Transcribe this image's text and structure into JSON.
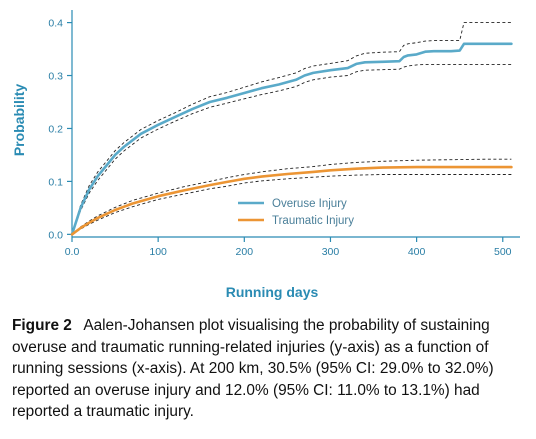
{
  "chart_data": {
    "type": "line",
    "title": "",
    "xlabel": "Running days",
    "ylabel": "Probability",
    "xlim": [
      0,
      520
    ],
    "ylim": [
      -0.005,
      0.42
    ],
    "x_ticks": [
      0,
      100,
      200,
      300,
      400,
      500
    ],
    "x_tick_labels": [
      "0.0",
      "100",
      "200",
      "300",
      "400",
      "500"
    ],
    "y_ticks": [
      0.0,
      0.1,
      0.2,
      0.3,
      0.4
    ],
    "y_tick_labels": [
      "0.0",
      "0.1",
      "0.2",
      "0.3",
      "0.4"
    ],
    "grid": false,
    "legend_position": "center-right",
    "series": [
      {
        "name": "Overuse Injury",
        "color": "#5aaac9",
        "x": [
          0,
          10,
          20,
          30,
          40,
          50,
          60,
          80,
          100,
          120,
          140,
          160,
          180,
          200,
          220,
          240,
          260,
          270,
          280,
          300,
          320,
          330,
          340,
          360,
          380,
          385,
          390,
          400,
          410,
          420,
          440,
          450,
          455,
          470,
          490,
          510
        ],
        "y": [
          0.0,
          0.05,
          0.085,
          0.11,
          0.13,
          0.15,
          0.165,
          0.19,
          0.207,
          0.222,
          0.237,
          0.25,
          0.258,
          0.267,
          0.276,
          0.283,
          0.292,
          0.3,
          0.305,
          0.31,
          0.314,
          0.322,
          0.325,
          0.326,
          0.327,
          0.335,
          0.338,
          0.34,
          0.345,
          0.346,
          0.346,
          0.347,
          0.36,
          0.36,
          0.36,
          0.36
        ],
        "ci_lower": [
          0.0,
          0.045,
          0.078,
          0.102,
          0.122,
          0.142,
          0.157,
          0.182,
          0.199,
          0.214,
          0.228,
          0.24,
          0.248,
          0.256,
          0.264,
          0.271,
          0.279,
          0.287,
          0.292,
          0.297,
          0.3,
          0.307,
          0.31,
          0.311,
          0.312,
          0.316,
          0.318,
          0.32,
          0.321,
          0.321,
          0.321,
          0.321,
          0.321,
          0.321,
          0.321,
          0.321
        ],
        "ci_upper": [
          0.0,
          0.055,
          0.092,
          0.118,
          0.138,
          0.158,
          0.173,
          0.198,
          0.215,
          0.23,
          0.246,
          0.26,
          0.268,
          0.278,
          0.288,
          0.296,
          0.305,
          0.313,
          0.318,
          0.323,
          0.328,
          0.337,
          0.342,
          0.344,
          0.345,
          0.357,
          0.36,
          0.362,
          0.365,
          0.366,
          0.366,
          0.366,
          0.4,
          0.4,
          0.4,
          0.4
        ]
      },
      {
        "name": "Traumatic Injury",
        "color": "#ec9534",
        "x": [
          0,
          10,
          20,
          30,
          50,
          70,
          100,
          130,
          160,
          180,
          190,
          200,
          220,
          250,
          280,
          300,
          330,
          360,
          400,
          440,
          480,
          510
        ],
        "y": [
          0.0,
          0.012,
          0.022,
          0.031,
          0.046,
          0.058,
          0.072,
          0.083,
          0.093,
          0.099,
          0.102,
          0.105,
          0.109,
          0.114,
          0.118,
          0.121,
          0.124,
          0.126,
          0.127,
          0.127,
          0.127,
          0.127
        ],
        "ci_lower": [
          0.0,
          0.01,
          0.019,
          0.027,
          0.041,
          0.052,
          0.066,
          0.076,
          0.086,
          0.091,
          0.094,
          0.097,
          0.101,
          0.105,
          0.108,
          0.11,
          0.112,
          0.113,
          0.113,
          0.113,
          0.113,
          0.113
        ],
        "ci_upper": [
          0.0,
          0.014,
          0.025,
          0.035,
          0.051,
          0.064,
          0.078,
          0.09,
          0.1,
          0.107,
          0.11,
          0.113,
          0.118,
          0.124,
          0.128,
          0.132,
          0.136,
          0.138,
          0.14,
          0.141,
          0.142,
          0.142
        ]
      }
    ]
  },
  "caption": {
    "label": "Figure 2",
    "text": "Aalen-Johansen plot visualising the probability of sustaining overuse and traumatic running-related injuries (y-axis) as a function of running sessions (x-axis). At 200 km, 30.5% (95% CI: 29.0% to 32.0%) reported an overuse injury and 12.0% (95% CI: 11.0% to 13.1%) had reported a traumatic injury."
  },
  "colors": {
    "axis": "#2a8bb3",
    "axis_label": "#2a8bb3",
    "tick_label": "#2a7ea5",
    "ci_line": "#222222"
  }
}
